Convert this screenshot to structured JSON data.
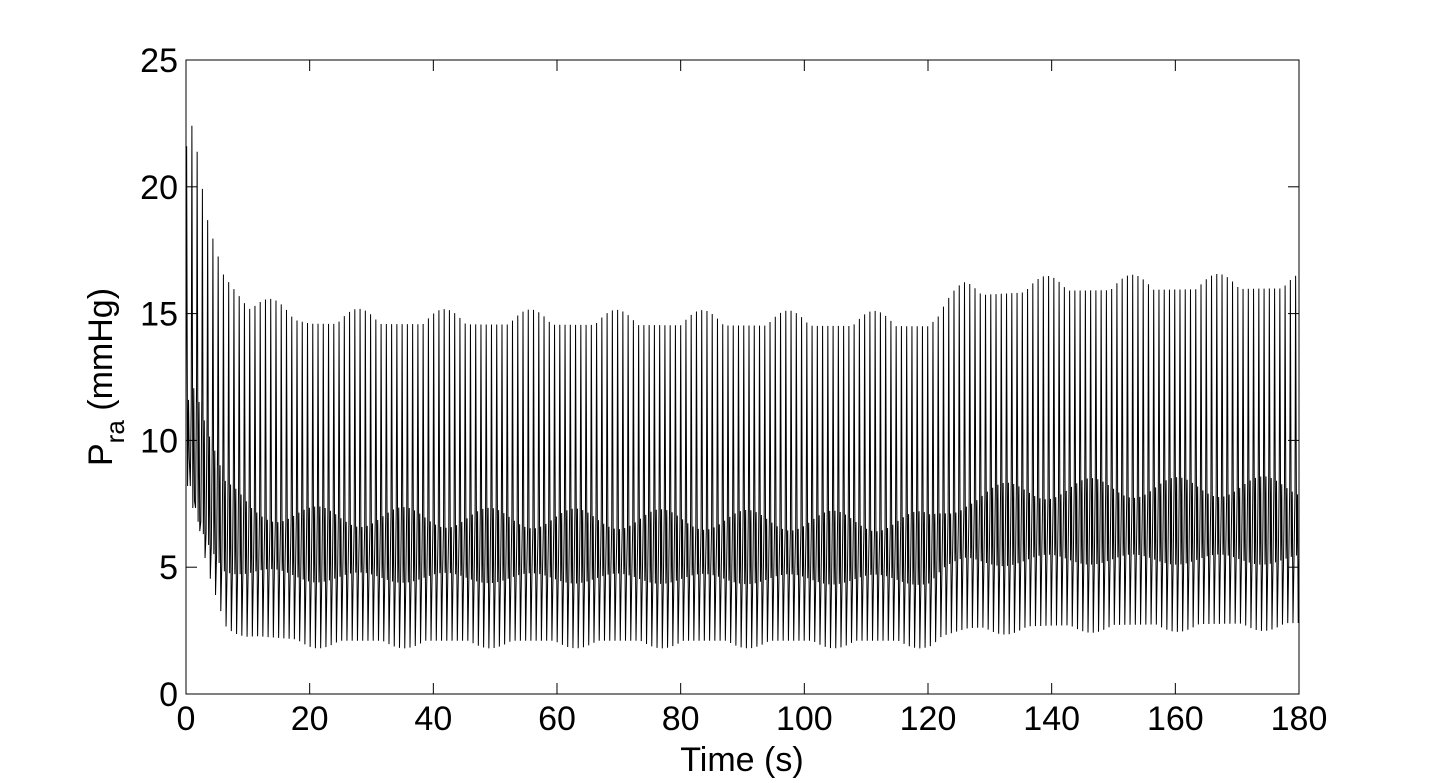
{
  "chart_data": {
    "type": "line",
    "title": "",
    "xlabel": "Time (s)",
    "ylabel": {
      "main": "P",
      "subscript": "ra",
      "unit": " (mmHg)"
    },
    "xlim": [
      0,
      180
    ],
    "ylim": [
      0,
      25
    ],
    "xticks": [
      0,
      20,
      40,
      60,
      80,
      100,
      120,
      140,
      160,
      180
    ],
    "yticks": [
      0,
      5,
      10,
      15,
      20,
      25
    ],
    "grid": false,
    "legend": "none",
    "line_color": "#000000",
    "signal": {
      "description": "oscillating right atrial pressure",
      "beat_period_s": 0.85,
      "envelope": [
        {
          "t": 0,
          "max": 21.0,
          "min": 9.0,
          "mean_hi": 12.0,
          "mean_lo": 8.0
        },
        {
          "t": 1,
          "max": 22.0,
          "min": 7.0,
          "mean_hi": 12.5,
          "mean_lo": 7.0
        },
        {
          "t": 3,
          "max": 19.0,
          "min": 4.5,
          "mean_hi": 10.5,
          "mean_lo": 6.0
        },
        {
          "t": 6,
          "max": 16.5,
          "min": 2.6,
          "mean_hi": 8.0,
          "mean_lo": 5.0
        },
        {
          "t": 10,
          "max": 15.2,
          "min": 2.0,
          "mean_hi": 7.3,
          "mean_lo": 4.8
        },
        {
          "t": 20,
          "max": 14.6,
          "min": 1.8,
          "mean_hi": 7.0,
          "mean_lo": 4.6
        },
        {
          "t": 120,
          "max": 14.5,
          "min": 1.8,
          "mean_hi": 6.8,
          "mean_lo": 4.5
        },
        {
          "t": 122,
          "max": 15.0,
          "min": 2.0,
          "mean_hi": 7.2,
          "mean_lo": 4.9
        },
        {
          "t": 126,
          "max": 15.7,
          "min": 2.3,
          "mean_hi": 7.8,
          "mean_lo": 5.2
        },
        {
          "t": 140,
          "max": 15.9,
          "min": 2.4,
          "mean_hi": 8.1,
          "mean_lo": 5.3
        },
        {
          "t": 180,
          "max": 16.0,
          "min": 2.5,
          "mean_hi": 8.2,
          "mean_lo": 5.3
        }
      ],
      "respiratory_modulation": {
        "period_s": 13.9,
        "peak_max_boost": 0.6
      }
    }
  }
}
